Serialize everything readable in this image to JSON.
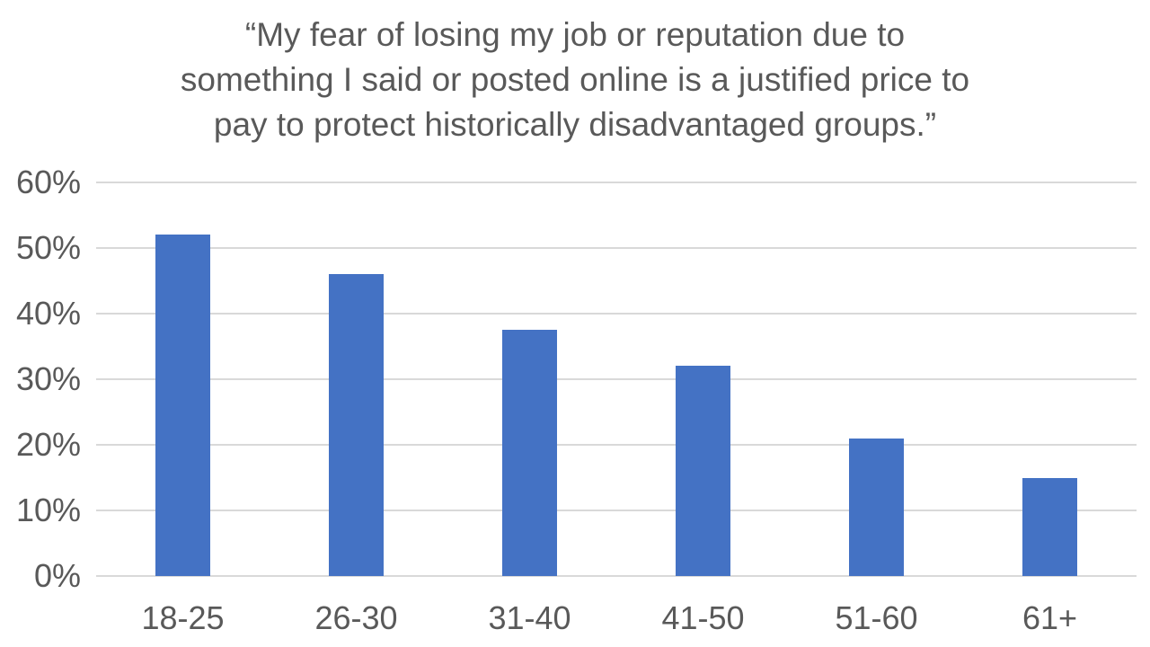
{
  "background": "#FFFFFF",
  "chart_data": {
    "type": "bar",
    "title": "“My fear of losing my job or reputation due to something I said or posted online is a justified price to pay to protect historically disadvantaged groups.”",
    "title_lines": [
      "“My fear of losing my job or reputation due to",
      "something I said or posted online is a justified price to",
      "pay to protect historically disadvantaged groups.”"
    ],
    "categories": [
      "18-25",
      "26-30",
      "31-40",
      "41-50",
      "51-60",
      "61+"
    ],
    "values": [
      52,
      46,
      37.5,
      32,
      21,
      15
    ],
    "value_unit": "%",
    "xlabel": "",
    "ylabel": "",
    "ylim": [
      0,
      60
    ],
    "ytick_step": 10,
    "yticks": [
      {
        "value": 0,
        "label": "0%"
      },
      {
        "value": 10,
        "label": "10%"
      },
      {
        "value": 20,
        "label": "20%"
      },
      {
        "value": 30,
        "label": "30%"
      },
      {
        "value": 40,
        "label": "40%"
      },
      {
        "value": 50,
        "label": "50%"
      },
      {
        "value": 60,
        "label": "60%"
      }
    ],
    "grid": "horizontal",
    "legend": false,
    "colors": {
      "bar": "#4472C4",
      "gridline": "#D9D9D9",
      "text": "#595959",
      "background": "#FFFFFF"
    }
  }
}
